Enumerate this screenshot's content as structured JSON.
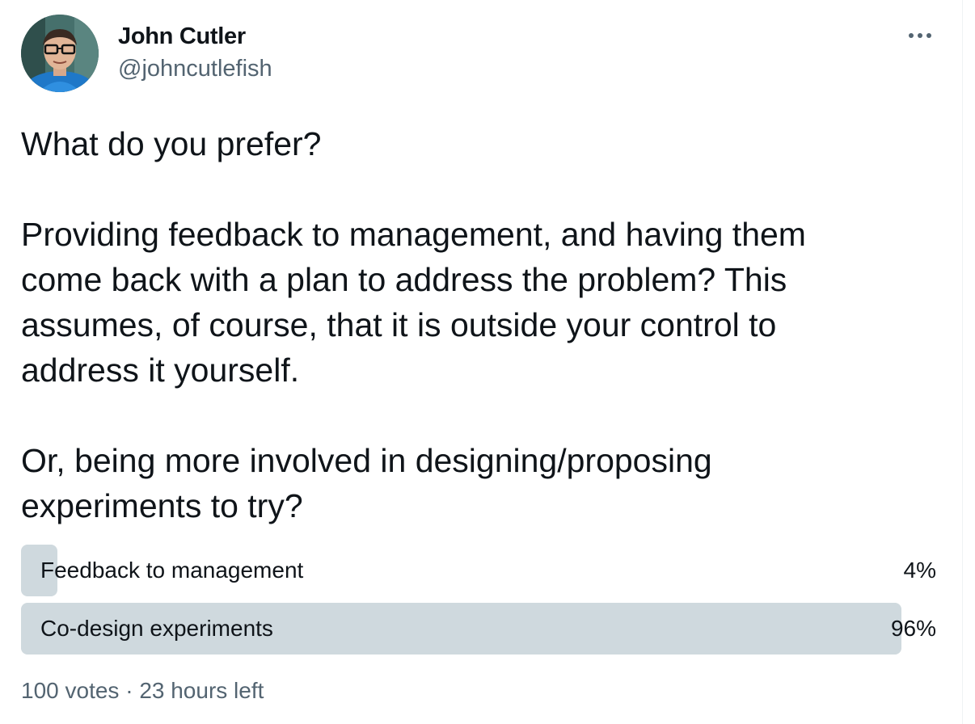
{
  "author": {
    "name": "John Cutler",
    "handle": "@johncutlefish",
    "avatar_icon": "profile-photo-icon"
  },
  "more_icon": "more-horizontal-icon",
  "tweet": {
    "paragraphs": [
      [
        "What do you prefer?"
      ],
      [
        "Providing feedback to management, and having them",
        "come back with a plan to address the problem? This",
        "assumes, of course, that it is outside your control to",
        "address it yourself."
      ],
      [
        "Or, being more involved in designing/proposing",
        "experiments to try?"
      ]
    ]
  },
  "poll": {
    "options": [
      {
        "label": "Feedback to management",
        "percent_label": "4%",
        "percent": 4
      },
      {
        "label": "Co-design experiments",
        "percent_label": "96%",
        "percent": 96
      }
    ],
    "votes": "100 votes",
    "separator": "·",
    "time_left": "23 hours left"
  },
  "colors": {
    "text": "#0f1419",
    "secondary": "#536471",
    "poll_bar": "#cfd9de"
  }
}
